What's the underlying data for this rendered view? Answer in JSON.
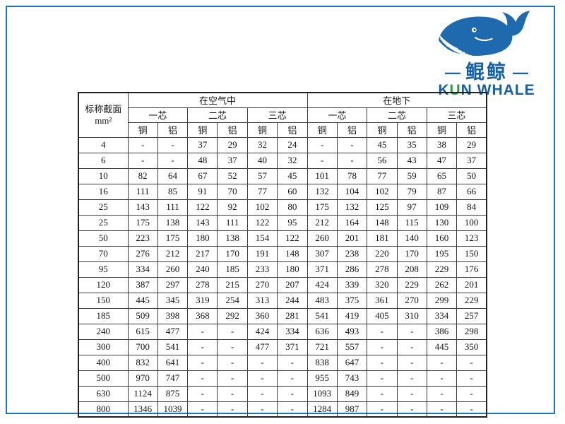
{
  "icons": {
    "logo": "whale-icon"
  },
  "frame_color": "#1b75c4",
  "logo": {
    "dash": "—",
    "cn": "鲲鲸",
    "en_k": "K",
    "en_u": "U",
    "en_rest": "N WHALE",
    "blue": "#1560a7",
    "green": "#2f9e41"
  },
  "table": {
    "corner_title": "标称截面",
    "corner_unit": "mm²",
    "group_headers": [
      "在空气中",
      "在地下"
    ],
    "core_headers": [
      "一芯",
      "二芯",
      "三芯",
      "一芯",
      "二芯",
      "三芯"
    ],
    "material_headers": [
      "铜",
      "铝",
      "铜",
      "铝",
      "铜",
      "铝",
      "铜",
      "铝",
      "铜",
      "铝",
      "铜",
      "铝"
    ],
    "rows": [
      {
        "section": "4",
        "values": [
          "-",
          "-",
          "37",
          "29",
          "32",
          "24",
          "-",
          "-",
          "45",
          "35",
          "38",
          "29"
        ]
      },
      {
        "section": "6",
        "values": [
          "-",
          "-",
          "48",
          "37",
          "40",
          "32",
          "-",
          "-",
          "56",
          "43",
          "47",
          "37"
        ]
      },
      {
        "section": "10",
        "values": [
          "82",
          "64",
          "67",
          "52",
          "57",
          "45",
          "101",
          "78",
          "77",
          "59",
          "65",
          "50"
        ]
      },
      {
        "section": "16",
        "values": [
          "111",
          "85",
          "91",
          "70",
          "77",
          "60",
          "132",
          "104",
          "102",
          "79",
          "87",
          "66"
        ]
      },
      {
        "section": "25",
        "values": [
          "143",
          "111",
          "122",
          "92",
          "102",
          "80",
          "175",
          "132",
          "125",
          "97",
          "109",
          "84"
        ]
      },
      {
        "section": "25",
        "values": [
          "175",
          "138",
          "143",
          "111",
          "122",
          "95",
          "212",
          "164",
          "148",
          "115",
          "130",
          "100"
        ]
      },
      {
        "section": "50",
        "values": [
          "223",
          "175",
          "180",
          "138",
          "154",
          "122",
          "260",
          "201",
          "181",
          "140",
          "160",
          "123"
        ]
      },
      {
        "section": "70",
        "values": [
          "276",
          "212",
          "217",
          "170",
          "191",
          "148",
          "307",
          "238",
          "220",
          "170",
          "195",
          "150"
        ]
      },
      {
        "section": "95",
        "values": [
          "334",
          "260",
          "240",
          "185",
          "233",
          "180",
          "371",
          "286",
          "278",
          "208",
          "229",
          "176"
        ]
      },
      {
        "section": "120",
        "values": [
          "387",
          "297",
          "278",
          "215",
          "270",
          "207",
          "424",
          "339",
          "320",
          "229",
          "262",
          "201"
        ]
      },
      {
        "section": "150",
        "values": [
          "445",
          "345",
          "319",
          "254",
          "313",
          "244",
          "483",
          "375",
          "361",
          "270",
          "299",
          "229"
        ]
      },
      {
        "section": "185",
        "values": [
          "509",
          "398",
          "368",
          "292",
          "360",
          "281",
          "541",
          "419",
          "405",
          "310",
          "334",
          "257"
        ]
      },
      {
        "section": "240",
        "values": [
          "615",
          "477",
          "-",
          "-",
          "424",
          "334",
          "636",
          "493",
          "-",
          "-",
          "386",
          "298"
        ]
      },
      {
        "section": "300",
        "values": [
          "700",
          "541",
          "-",
          "-",
          "477",
          "371",
          "721",
          "557",
          "-",
          "-",
          "445",
          "350"
        ]
      },
      {
        "section": "400",
        "values": [
          "832",
          "641",
          "-",
          "-",
          "-",
          "-",
          "838",
          "647",
          "-",
          "-",
          "-",
          "-"
        ]
      },
      {
        "section": "500",
        "values": [
          "970",
          "747",
          "-",
          "-",
          "-",
          "-",
          "955",
          "743",
          "-",
          "-",
          "-",
          "-"
        ]
      },
      {
        "section": "630",
        "values": [
          "1124",
          "875",
          "-",
          "-",
          "-",
          "-",
          "1093",
          "849",
          "-",
          "-",
          "-",
          "-"
        ]
      },
      {
        "section": "800",
        "values": [
          "1346",
          "1039",
          "-",
          "-",
          "-",
          "-",
          "1284",
          "987",
          "-",
          "-",
          "-",
          "-"
        ]
      }
    ]
  }
}
